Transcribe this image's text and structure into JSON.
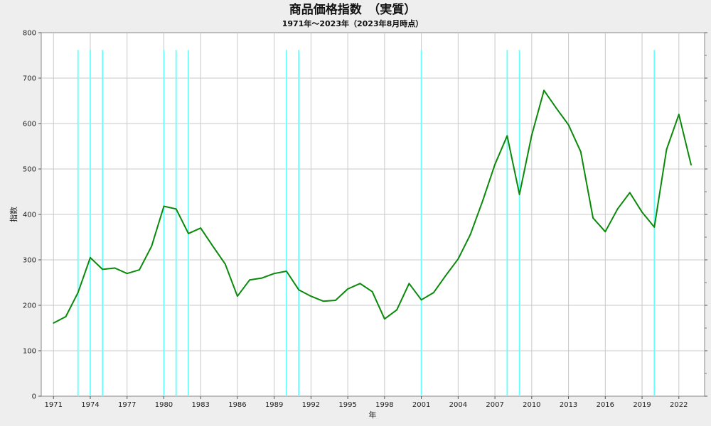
{
  "chart_data": {
    "type": "line",
    "title": "商品価格指数　（実質）",
    "subtitle": "1971年～2023年（2023年8月時点）",
    "xlabel": "年",
    "ylabel": "指数",
    "xlim": [
      1971,
      2023
    ],
    "ylim": [
      0,
      800
    ],
    "x_ticks": [
      "1971",
      "1974",
      "1977",
      "1980",
      "1983",
      "1986",
      "1989",
      "1992",
      "1995",
      "1998",
      "2001",
      "2004",
      "2007",
      "2010",
      "2013",
      "2016",
      "2019",
      "2022"
    ],
    "y_ticks": [
      "0",
      "100",
      "200",
      "300",
      "400",
      "500",
      "600",
      "700",
      "800"
    ],
    "grid": true,
    "series": [
      {
        "color": "#0a8a0a",
        "x": [
          1971,
          1972,
          1973,
          1974,
          1975,
          1976,
          1977,
          1978,
          1979,
          1980,
          1981,
          1982,
          1983,
          1984,
          1985,
          1986,
          1987,
          1988,
          1989,
          1990,
          1991,
          1992,
          1993,
          1994,
          1995,
          1996,
          1997,
          1998,
          1999,
          2000,
          2001,
          2002,
          2003,
          2004,
          2005,
          2006,
          2007,
          2008,
          2009,
          2010,
          2011,
          2012,
          2013,
          2014,
          2015,
          2016,
          2017,
          2018,
          2019,
          2020,
          2021,
          2022,
          2023
        ],
        "values": [
          161,
          175,
          228,
          305,
          279,
          282,
          270,
          278,
          330,
          418,
          412,
          358,
          370,
          330,
          291,
          220,
          256,
          260,
          270,
          275,
          234,
          220,
          209,
          211,
          236,
          248,
          230,
          170,
          190,
          248,
          212,
          228,
          266,
          302,
          356,
          430,
          510,
          573,
          444,
          574,
          673,
          634,
          597,
          538,
          392,
          362,
          412,
          448,
          405,
          372,
          543,
          620,
          509
        ]
      }
    ],
    "markers": {
      "color": "#66ffff",
      "x": [
        1973,
        1974,
        1975,
        1980,
        1981,
        1982,
        1990,
        1991,
        2001,
        2008,
        2009,
        2020
      ]
    }
  }
}
